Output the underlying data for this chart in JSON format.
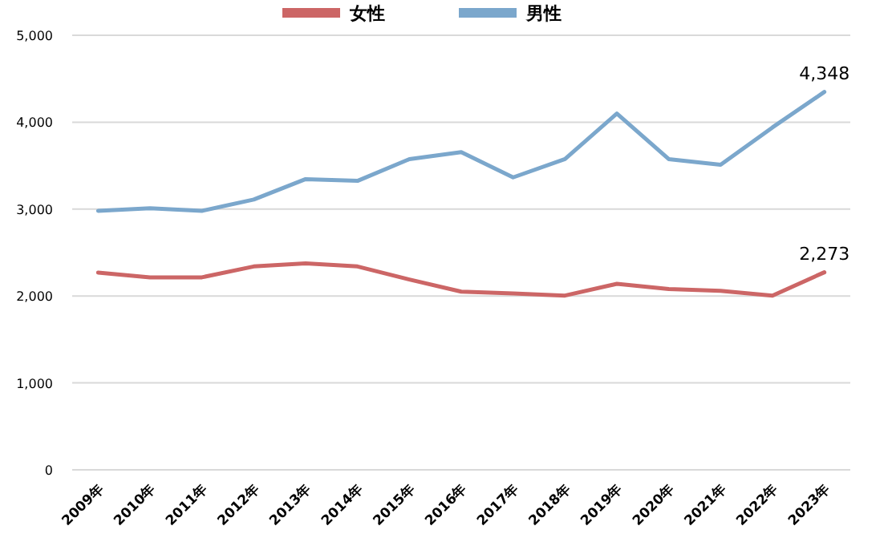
{
  "chart_data": {
    "type": "line",
    "categories": [
      "2009年",
      "2010年",
      "2011年",
      "2012年",
      "2013年",
      "2014年",
      "2015年",
      "2016年",
      "2017年",
      "2018年",
      "2019年",
      "2020年",
      "2021年",
      "2022年",
      "2023年"
    ],
    "series": [
      {
        "name": "女性",
        "color": "#cc6666",
        "values": [
          2270,
          2215,
          2215,
          2340,
          2375,
          2340,
          2190,
          2050,
          2030,
          2005,
          2140,
          2080,
          2060,
          2005,
          2273
        ],
        "value_labels": [
          null,
          null,
          null,
          null,
          null,
          null,
          null,
          null,
          null,
          null,
          null,
          null,
          null,
          null,
          "2,273"
        ]
      },
      {
        "name": "男性",
        "color": "#7ba7cc",
        "values": [
          2980,
          3010,
          2980,
          3110,
          3345,
          3325,
          3575,
          3655,
          3365,
          3575,
          4100,
          3575,
          3510,
          3940,
          4348
        ],
        "value_labels": [
          null,
          null,
          null,
          null,
          null,
          null,
          null,
          null,
          null,
          null,
          null,
          null,
          null,
          null,
          "4,348"
        ]
      }
    ],
    "ylim": [
      0,
      5000
    ],
    "yticks": [
      {
        "value": 0,
        "label": "0"
      },
      {
        "value": 1000,
        "label": "1,000"
      },
      {
        "value": 2000,
        "label": "2,000"
      },
      {
        "value": 3000,
        "label": "3,000"
      },
      {
        "value": 4000,
        "label": "4,000"
      },
      {
        "value": 5000,
        "label": "5,000"
      }
    ],
    "grid": "y",
    "legend": "top"
  }
}
